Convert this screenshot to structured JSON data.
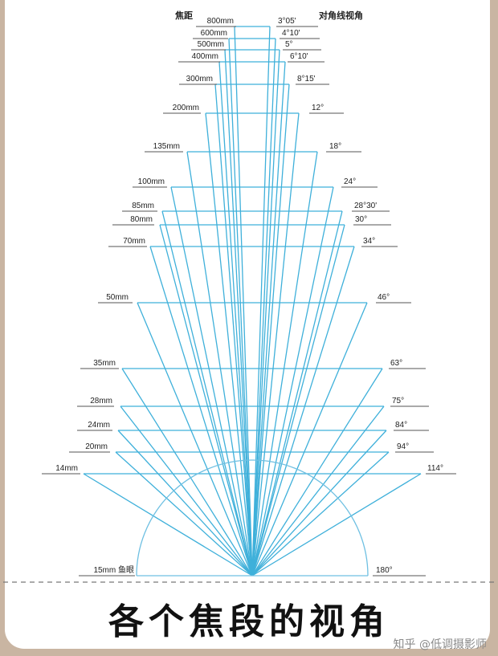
{
  "header": {
    "left_label": "焦距",
    "right_label": "对角线视角"
  },
  "lenses": [
    {
      "focal": "800mm",
      "angle": "3°05'"
    },
    {
      "focal": "600mm",
      "angle": "4°10'"
    },
    {
      "focal": "500mm",
      "angle": "5°"
    },
    {
      "focal": "400mm",
      "angle": "6°10'"
    },
    {
      "focal": "300mm",
      "angle": "8°15'"
    },
    {
      "focal": "200mm",
      "angle": "12°"
    },
    {
      "focal": "135mm",
      "angle": "18°"
    },
    {
      "focal": "100mm",
      "angle": "24°"
    },
    {
      "focal": "85mm",
      "angle": "28°30'"
    },
    {
      "focal": "80mm",
      "angle": "30°"
    },
    {
      "focal": "70mm",
      "angle": "34°"
    },
    {
      "focal": "50mm",
      "angle": "46°"
    },
    {
      "focal": "35mm",
      "angle": "63°"
    },
    {
      "focal": "28mm",
      "angle": "75°"
    },
    {
      "focal": "24mm",
      "angle": "84°"
    },
    {
      "focal": "20mm",
      "angle": "94°"
    },
    {
      "focal": "14mm",
      "angle": "114°"
    }
  ],
  "fisheye": {
    "focal": "15mm 鱼眼",
    "angle": "180°"
  },
  "caption": "各个焦段的视角",
  "watermark": "知乎 @低调摄影师",
  "colors": {
    "ray": "#3fb0da",
    "arc": "#6fc0e2",
    "text": "#222222",
    "background": "#c9b5a2"
  }
}
